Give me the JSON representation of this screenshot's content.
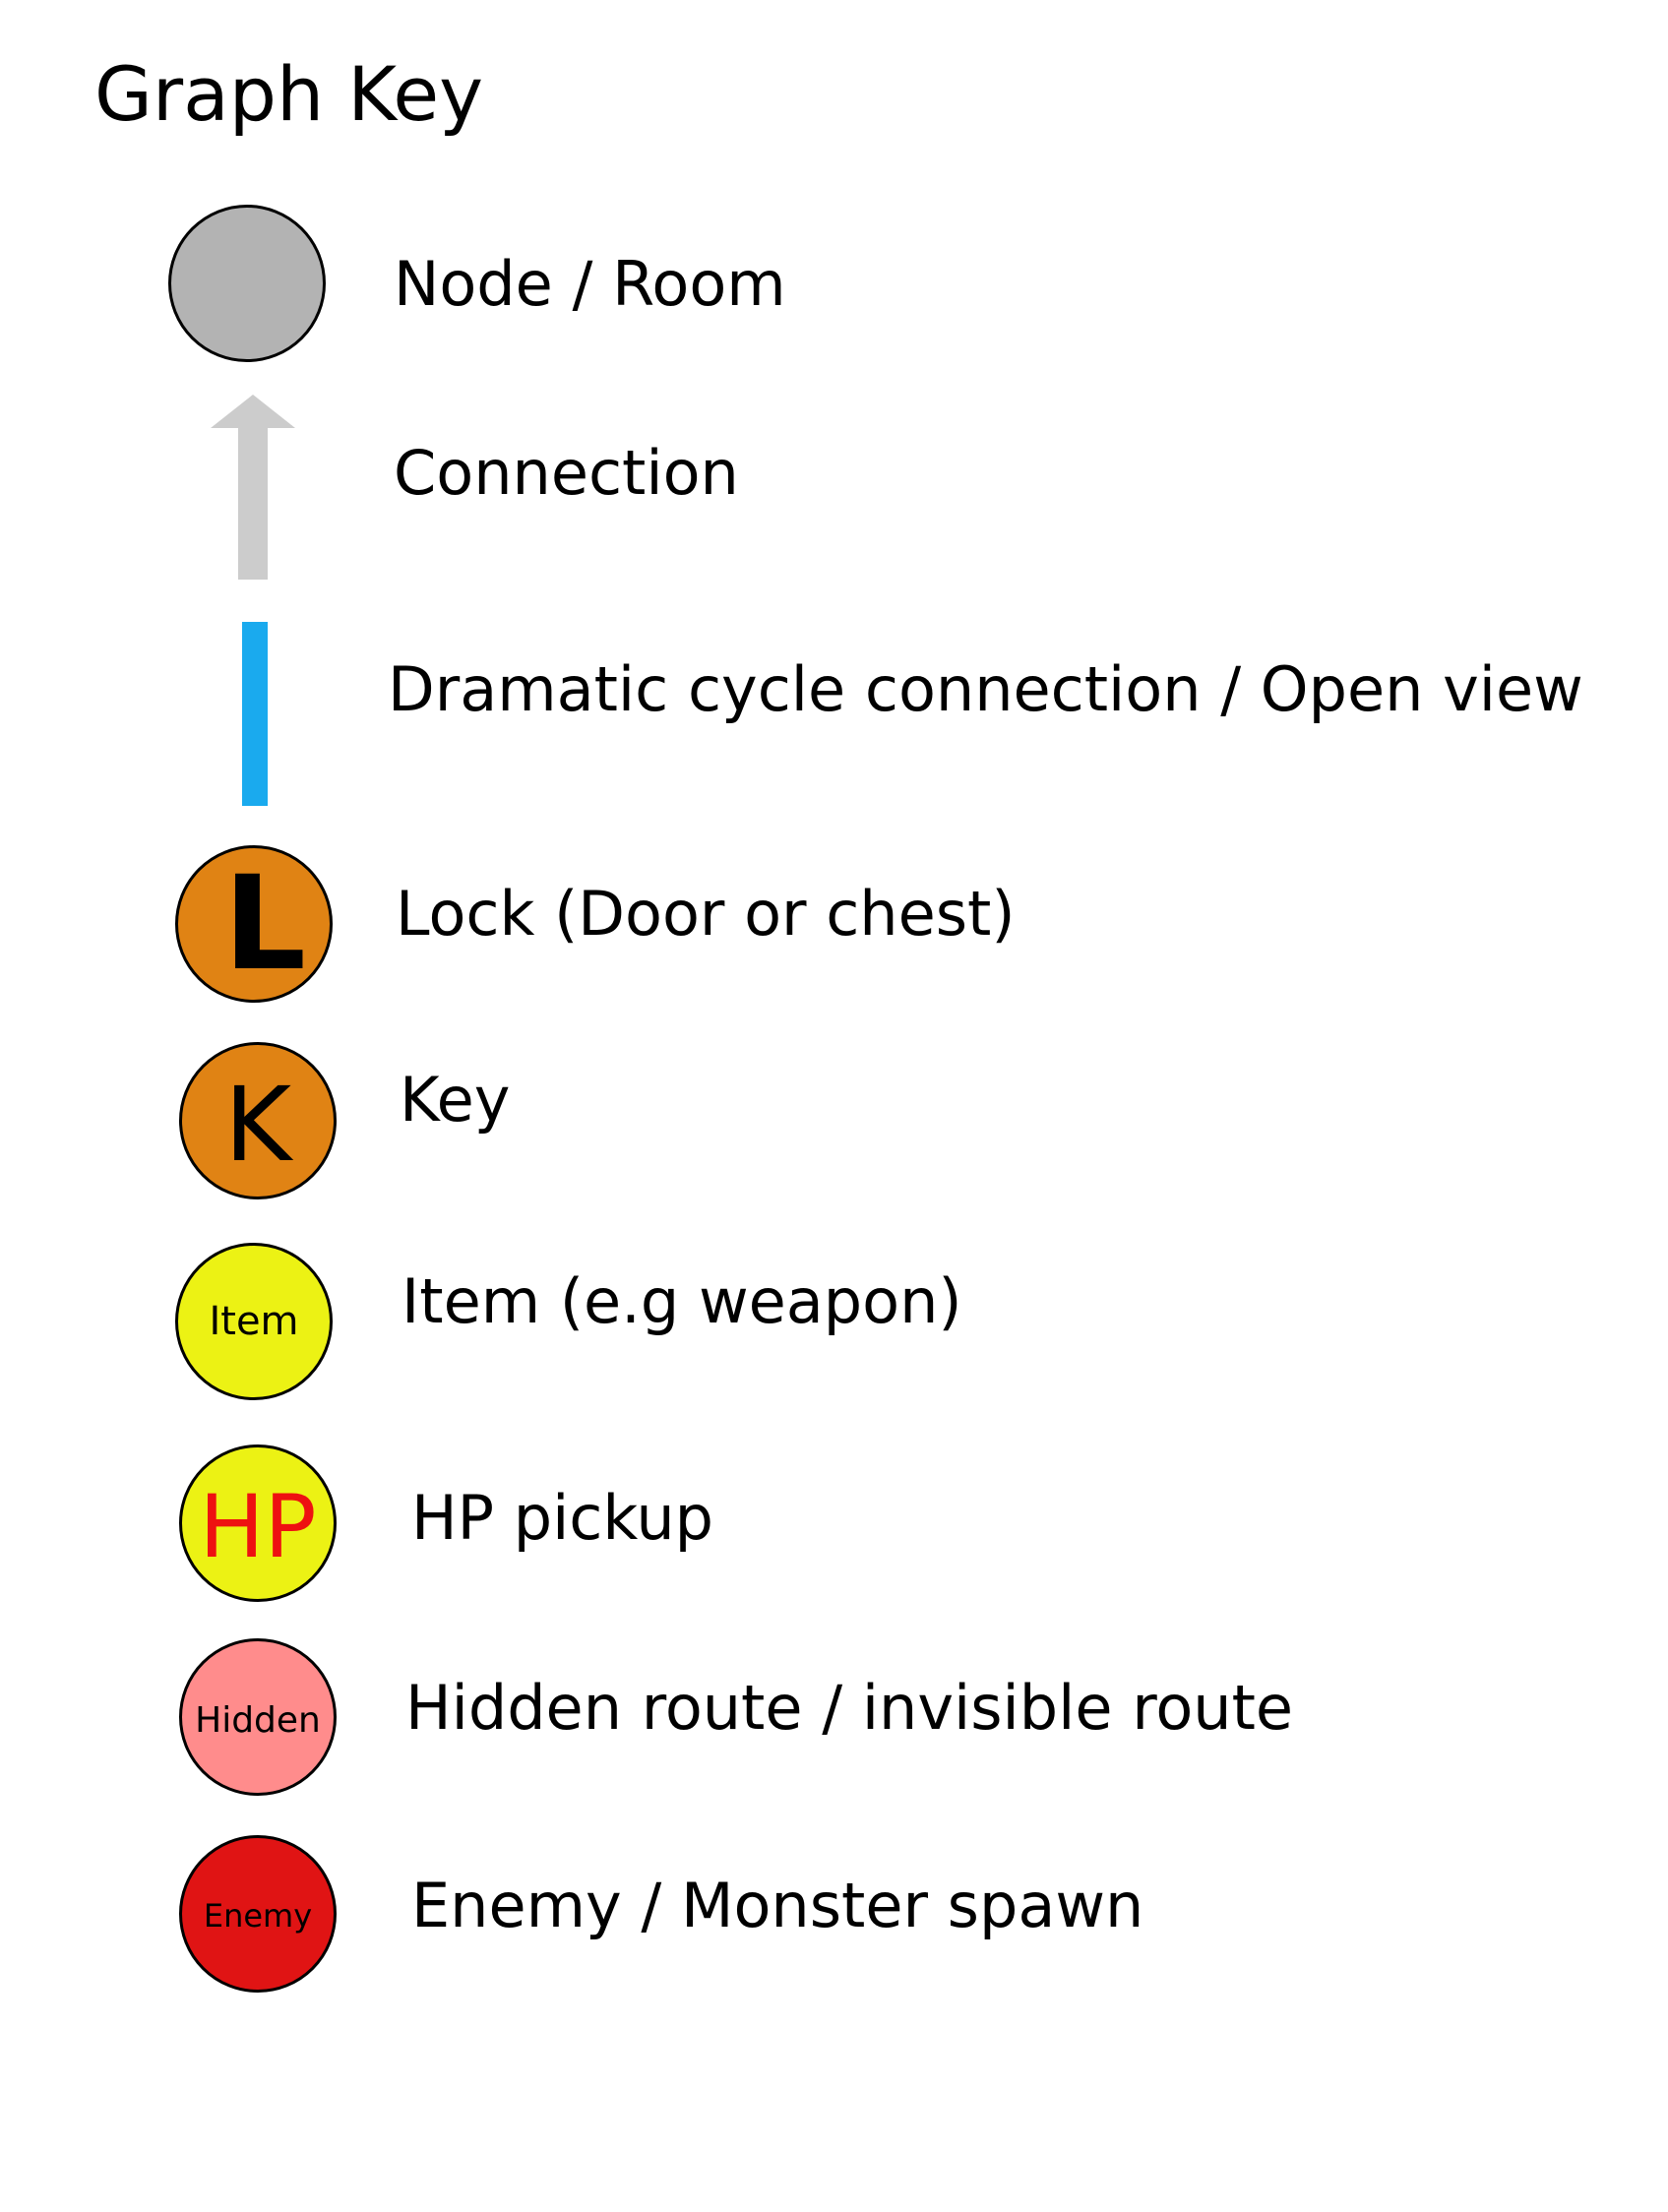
{
  "title": "Graph Key",
  "legend": {
    "node": {
      "label": "Node / Room"
    },
    "connection": {
      "label": "Connection"
    },
    "dramatic_cycle": {
      "label": "Dramatic cycle connection / Open view"
    },
    "lock": {
      "symbol_text": "L",
      "label": "Lock (Door or chest)"
    },
    "key": {
      "symbol_text": "K",
      "label": "Key"
    },
    "item": {
      "symbol_text": "Item",
      "label": "Item (e.g weapon)"
    },
    "hp": {
      "symbol_text": "HP",
      "label": "HP pickup"
    },
    "hidden": {
      "symbol_text": "Hidden",
      "label": "Hidden route / invisible route"
    },
    "enemy": {
      "symbol_text": "Enemy",
      "label": "Enemy / Monster spawn"
    }
  },
  "colors": {
    "node_fill": "#b3b3b3",
    "connection_arrow": "#cccccc",
    "dramatic_cycle": "#1aaaee",
    "lock_key_fill": "#e08314",
    "item_hp_fill": "#ecf214",
    "hp_text": "#ee1111",
    "hidden_fill": "#ff8c8c",
    "enemy_fill": "#e01414",
    "outline": "#000000"
  },
  "icons": {
    "node": "circle-node-icon",
    "connection": "up-arrow-icon",
    "dramatic_cycle": "vertical-bar-icon"
  }
}
